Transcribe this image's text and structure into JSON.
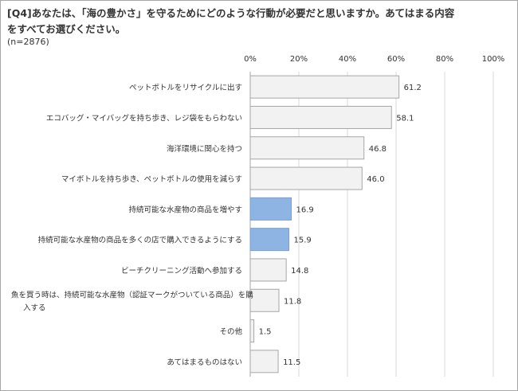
{
  "header": {
    "title_line1": "[Q4]あなたは、「海の豊かさ」を守るためにどのような行動が必要だと思いますか。あてはまる内容",
    "title_line2": "をすべてお選びください。",
    "sample_note": "(n=2876)"
  },
  "chart_data": {
    "type": "bar",
    "orientation": "horizontal",
    "xlim": [
      0,
      100
    ],
    "tick_labels": [
      "0%",
      "20%",
      "40%",
      "60%",
      "80%",
      "100%"
    ],
    "grid": "vertical",
    "categories": [
      [
        "ペットボトルをリサイクルに出す"
      ],
      [
        "エコバッグ・マイバッグを持ち歩き、レジ袋をもらわない"
      ],
      [
        "海洋環境に関心を持つ"
      ],
      [
        "マイボトルを持ち歩き、ペットボトルの使用を減らす"
      ],
      [
        "持続可能な水産物の商品を増やす"
      ],
      [
        "持続可能な水産物の商品を多くの店で購入できるようにする"
      ],
      [
        "ビーチクリーニング活動へ参加する"
      ],
      [
        "魚を買う時は、持続可能な水産物（認証マークがついている商品）を購",
        "入する"
      ],
      [
        "その他"
      ],
      [
        "あてはまるものはない"
      ]
    ],
    "values": [
      61.2,
      58.1,
      46.8,
      46.0,
      16.9,
      15.9,
      14.8,
      11.8,
      1.5,
      11.5
    ],
    "value_labels": [
      "61.2",
      "58.1",
      "46.8",
      "46.0",
      "16.9",
      "15.9",
      "14.8",
      "11.8",
      "1.5",
      "11.5"
    ],
    "highlighted": [
      false,
      false,
      false,
      false,
      true,
      true,
      false,
      false,
      false,
      false
    ],
    "colors": {
      "bar_fill": "#f2f2f2",
      "bar_stroke": "#a6a6a6",
      "highlight_fill": "#8eb4e3",
      "highlight_stroke": "#7a9fd0",
      "grid": "#d9d9d9",
      "axis": "#a6a6a6"
    }
  }
}
